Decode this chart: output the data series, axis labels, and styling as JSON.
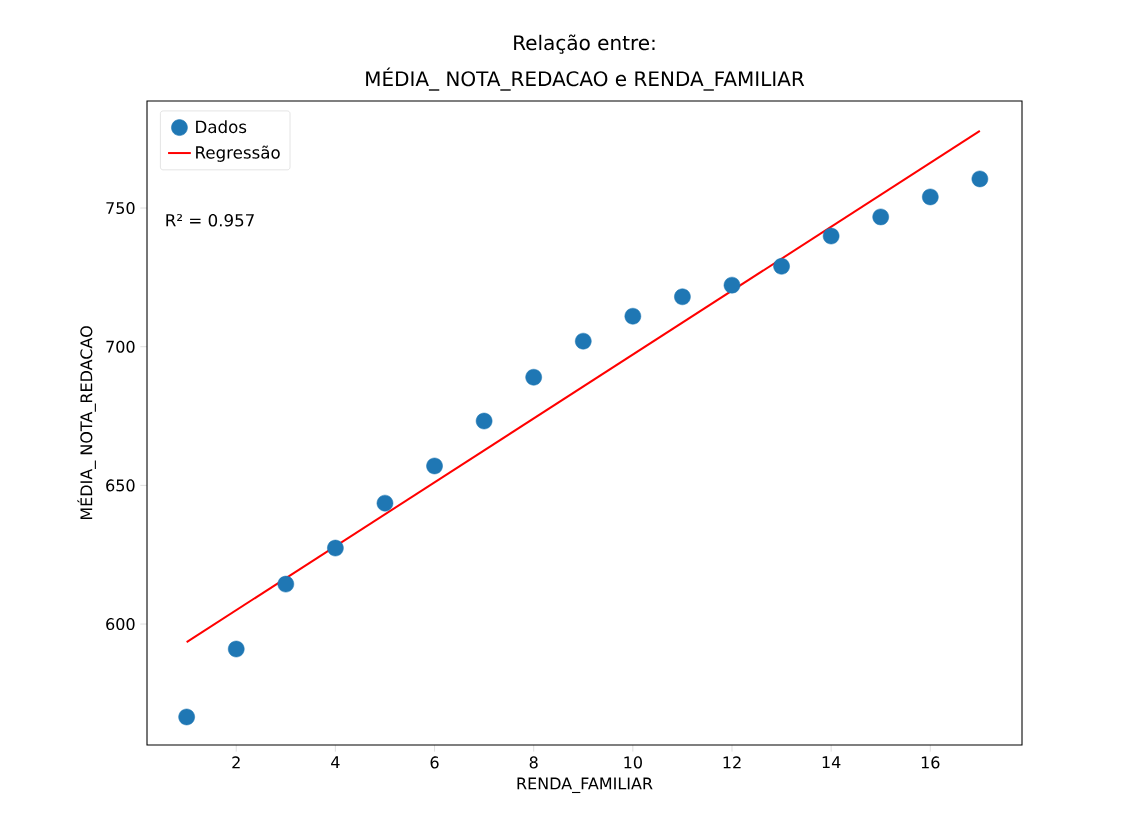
{
  "chart_data": {
    "type": "scatter",
    "title": "Relação entre:",
    "subtitle": "MÉDIA_ NOTA_REDACAO e RENDA_FAMILIAR",
    "xlabel": "RENDA_FAMILIAR",
    "ylabel": "MÉDIA_ NOTA_REDACAO",
    "x": [
      1,
      2,
      3,
      4,
      5,
      6,
      7,
      8,
      9,
      10,
      11,
      12,
      13,
      14,
      15,
      16,
      17
    ],
    "series": [
      {
        "name": "Dados",
        "color": "#1f77b4",
        "marker": "circle",
        "values": [
          566.5,
          591,
          614.4,
          627.4,
          643.6,
          657,
          673.2,
          689,
          702,
          711,
          718,
          722.2,
          729,
          739.9,
          746.8,
          754,
          760.5
        ]
      },
      {
        "name": "Regressão",
        "type": "line",
        "color": "#ff0000",
        "line_style": "solid",
        "x": [
          1,
          17
        ],
        "values": [
          593.5,
          777.8
        ]
      }
    ],
    "annotations": [
      "R² = 0.957"
    ],
    "xlim": [
      0.2,
      17.85
    ],
    "ylim": [
      556.4,
      788.6
    ],
    "xticks": [
      2,
      4,
      6,
      8,
      10,
      12,
      14,
      16
    ],
    "yticks": [
      600,
      650,
      700,
      750
    ],
    "legend": "top left",
    "grid": false
  }
}
